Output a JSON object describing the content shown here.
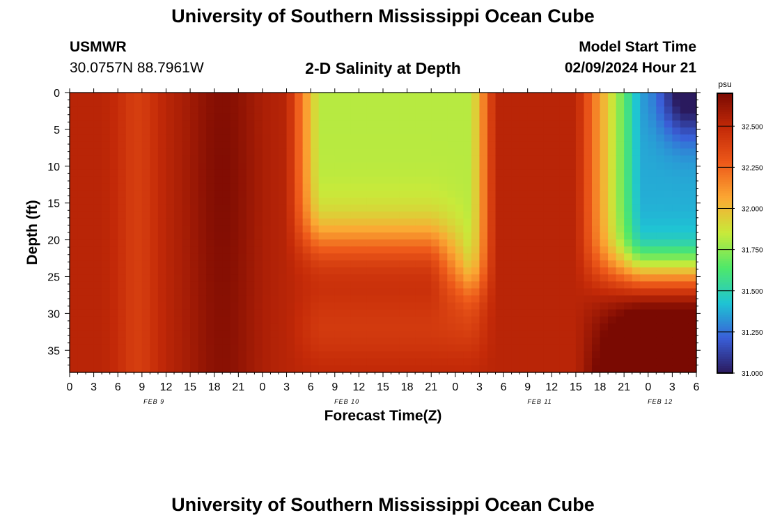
{
  "header": {
    "title": "University of Southern Mississippi Ocean Cube",
    "station": "USMWR",
    "coords": "30.0757N  88.7961W",
    "subtitle": "2-D Salinity at Depth",
    "model_label": "Model Start Time",
    "model_time": "02/09/2024 Hour 21"
  },
  "footer": {
    "title": "University of Southern Mississippi Ocean Cube"
  },
  "chart_data": {
    "type": "heatmap",
    "title": "2-D Salinity at Depth",
    "xlabel": "Forecast Time(Z)",
    "ylabel": "Depth (ft)",
    "x_unit": "hours since model start",
    "xlim": [
      0,
      78
    ],
    "ylim": [
      0,
      38
    ],
    "y_inverted": true,
    "x_tick_labels": [
      "0",
      "3",
      "6",
      "9",
      "12",
      "15",
      "18",
      "21",
      "0",
      "3",
      "6",
      "9",
      "12",
      "15",
      "18",
      "21",
      "0",
      "3",
      "6",
      "9",
      "12",
      "15",
      "18",
      "21",
      "0",
      "3",
      "6"
    ],
    "day_labels": [
      {
        "label": "FEB 9",
        "at_tick": 3.5
      },
      {
        "label": "FEB 10",
        "at_tick": 11.5
      },
      {
        "label": "FEB 11",
        "at_tick": 19.5
      },
      {
        "label": "FEB 12",
        "at_tick": 24.5
      }
    ],
    "y_ticks": [
      0,
      5,
      10,
      15,
      20,
      25,
      30,
      35
    ],
    "colorbar": {
      "unit": "psu",
      "min": 31.0,
      "max": 32.7,
      "ticks": [
        "31.000",
        "31.250",
        "31.500",
        "31.750",
        "32.000",
        "32.250",
        "32.500"
      ]
    },
    "colormap": [
      "#2a1a5e",
      "#3a5fd8",
      "#1ec4d4",
      "#4ee86a",
      "#c8ea3a",
      "#fba833",
      "#ee5a1a",
      "#c42a08",
      "#7a0a02"
    ],
    "grid": "off",
    "legend": "colorbar-right"
  }
}
